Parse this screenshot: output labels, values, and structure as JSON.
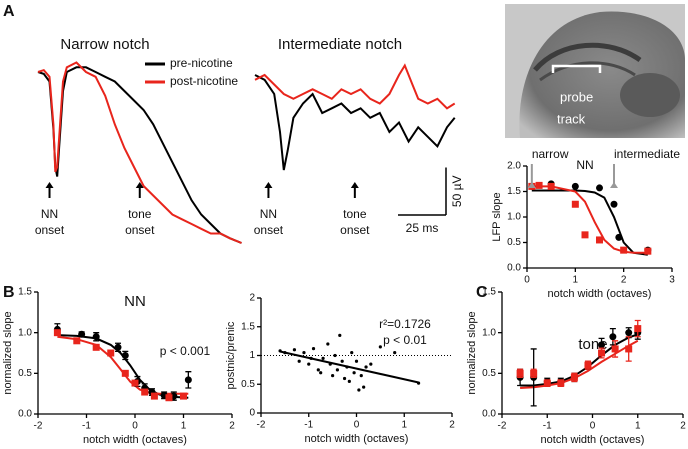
{
  "panels": [
    "A",
    "B",
    "C"
  ],
  "image": {
    "labels": [
      "probe",
      "track"
    ]
  },
  "chart_data": [
    {
      "type": "line",
      "title": "Narrow notch",
      "series": [
        {
          "name": "pre-nicotine",
          "color": "#000000",
          "x": [
            0,
            3,
            6,
            8,
            9,
            10,
            11,
            13,
            15,
            20,
            25,
            30,
            35,
            40,
            45,
            50,
            55,
            60,
            65,
            70,
            75,
            80,
            85,
            90,
            95,
            100,
            106
          ],
          "values": [
            0,
            -2,
            -10,
            -60,
            -100,
            -110,
            -80,
            -20,
            0,
            5,
            5,
            0,
            -5,
            -10,
            -20,
            -30,
            -40,
            -55,
            -75,
            -95,
            -115,
            -135,
            -150,
            -160,
            -170,
            -175,
            -180
          ]
        },
        {
          "name": "post-nicotine",
          "color": "#e8251c",
          "x": [
            0,
            3,
            6,
            8,
            9,
            10,
            11,
            13,
            15,
            20,
            25,
            30,
            35,
            40,
            45,
            50,
            55,
            60,
            65,
            70,
            75,
            80,
            85,
            90,
            95,
            100,
            106
          ],
          "values": [
            0,
            2,
            -5,
            -55,
            -105,
            -100,
            -70,
            -10,
            5,
            10,
            0,
            -5,
            -25,
            -55,
            -80,
            -100,
            -120,
            -130,
            -140,
            -150,
            -155,
            -160,
            -165,
            -170,
            -170,
            -175,
            -180
          ]
        }
      ],
      "annotations": [
        {
          "x": 6,
          "lines": [
            "NN",
            "onset"
          ]
        },
        {
          "x": 53,
          "lines": [
            "tone",
            "onset"
          ]
        }
      ]
    },
    {
      "type": "line",
      "title": "Intermediate notch",
      "series": [
        {
          "color": "#000000",
          "x": [
            0,
            5,
            10,
            13,
            15,
            17,
            20,
            25,
            30,
            35,
            40,
            45,
            50,
            55,
            60,
            65,
            70,
            75,
            80,
            85,
            90,
            95,
            100,
            104
          ],
          "values": [
            0,
            -5,
            -20,
            -60,
            -100,
            -80,
            -45,
            -30,
            -20,
            -40,
            -35,
            -30,
            -40,
            -35,
            -45,
            -40,
            -60,
            -50,
            -70,
            -55,
            -65,
            -75,
            -55,
            -45
          ]
        },
        {
          "color": "#e8251c",
          "x": [
            0,
            5,
            10,
            15,
            20,
            25,
            30,
            35,
            40,
            45,
            50,
            55,
            60,
            65,
            70,
            75,
            78,
            82,
            85,
            90,
            95,
            100,
            104
          ],
          "values": [
            -5,
            0,
            -10,
            -20,
            -25,
            -20,
            -15,
            -20,
            -25,
            -15,
            -20,
            -15,
            -25,
            -30,
            -20,
            0,
            10,
            -10,
            -25,
            -30,
            -25,
            -35,
            -30
          ]
        }
      ],
      "annotations": [
        {
          "x": 7,
          "lines": [
            "NN",
            "onset"
          ]
        },
        {
          "x": 52,
          "lines": [
            "tone",
            "onset"
          ]
        }
      ],
      "scalebar": {
        "x": 25,
        "x_label": "25 ms",
        "y": 50,
        "y_label": "50 µV"
      }
    },
    {
      "type": "scatter",
      "xlabel": "notch width (octaves)",
      "ylabel": "LFP slope",
      "xlim": [
        0,
        3
      ],
      "ylim": [
        0,
        2
      ],
      "xticks": [
        0,
        1,
        2,
        3
      ],
      "yticks": [
        {
          "value": 0,
          "label": "0.0"
        },
        0.5,
        {
          "value": 1,
          "label": "1.0"
        },
        1.5,
        {
          "value": 2,
          "label": "2.0"
        }
      ],
      "series": [
        {
          "color": "#000000",
          "marker": "circle",
          "x": [
            0.1,
            0.5,
            1.0,
            1.5,
            1.8,
            1.9,
            2.5
          ],
          "values": [
            1.6,
            1.65,
            1.6,
            1.57,
            1.25,
            0.6,
            0.35
          ]
        },
        {
          "color": "#e8251c",
          "marker": "square",
          "x": [
            0.1,
            0.25,
            0.5,
            1.0,
            1.2,
            1.5,
            2.0,
            2.5
          ],
          "values": [
            1.6,
            1.62,
            1.6,
            1.25,
            0.65,
            0.55,
            0.35,
            0.33
          ]
        }
      ],
      "fits": [
        {
          "color": "#000000",
          "x": [
            0.1,
            0.5,
            1.0,
            1.2,
            1.4,
            1.6,
            1.8,
            2.0,
            2.2,
            2.5
          ],
          "values": [
            1.52,
            1.52,
            1.52,
            1.51,
            1.48,
            1.38,
            1.0,
            0.5,
            0.3,
            0.26
          ]
        },
        {
          "color": "#e8251c",
          "x": [
            0.1,
            0.5,
            1.0,
            1.2,
            1.4,
            1.6,
            1.8,
            2.0,
            2.2,
            2.5
          ],
          "values": [
            1.6,
            1.6,
            1.5,
            1.3,
            0.9,
            0.55,
            0.38,
            0.32,
            0.3,
            0.3
          ]
        }
      ],
      "annotations": [
        {
          "x": 0.1,
          "text": "narrow",
          "arrow": true
        },
        {
          "x": 1.2,
          "text": "NN"
        },
        {
          "x": 1.8,
          "text": "intermediate",
          "arrow": true
        }
      ]
    },
    {
      "type": "scatter",
      "title": "NN",
      "xlabel": "notch width (octaves)",
      "ylabel": "normalized slope",
      "xlim": [
        -2,
        2
      ],
      "ylim": [
        0,
        1.5
      ],
      "xticks": [
        -2,
        -1,
        0,
        1,
        2
      ],
      "yticks": [
        {
          "value": 0,
          "label": "0.0"
        },
        0.5,
        {
          "value": 1,
          "label": "1.0"
        },
        1.5
      ],
      "series": [
        {
          "color": "#000000",
          "marker": "circle",
          "x": [
            -1.6,
            -1.1,
            -0.8,
            -0.35,
            -0.2,
            0.05,
            0.2,
            0.35,
            0.6,
            0.8,
            1.1
          ],
          "values": [
            1.04,
            0.98,
            0.95,
            0.82,
            0.72,
            0.4,
            0.32,
            0.27,
            0.23,
            0.22,
            0.42
          ],
          "errors": [
            0.07,
            0.03,
            0.05,
            0.05,
            0.05,
            0.06,
            0.05,
            0.04,
            0.04,
            0.05,
            0.1
          ]
        },
        {
          "color": "#e8251c",
          "marker": "square",
          "x": [
            -1.6,
            -1.2,
            -0.8,
            -0.5,
            -0.2,
            0.0,
            0.2,
            0.4,
            0.7,
            1.0
          ],
          "values": [
            1.0,
            0.9,
            0.82,
            0.75,
            0.5,
            0.38,
            0.27,
            0.22,
            0.2,
            0.22
          ]
        }
      ],
      "fits": [
        {
          "color": "#000000",
          "x": [
            -1.6,
            -1.2,
            -0.8,
            -0.5,
            -0.3,
            -0.1,
            0.1,
            0.3,
            0.5,
            0.8,
            1.1
          ],
          "values": [
            0.97,
            0.96,
            0.93,
            0.85,
            0.75,
            0.6,
            0.42,
            0.3,
            0.24,
            0.21,
            0.2
          ]
        },
        {
          "color": "#e8251c",
          "x": [
            -1.6,
            -1.2,
            -0.8,
            -0.5,
            -0.3,
            -0.1,
            0.1,
            0.3,
            0.5,
            0.8,
            1.1
          ],
          "values": [
            0.95,
            0.92,
            0.85,
            0.7,
            0.55,
            0.4,
            0.3,
            0.26,
            0.25,
            0.25,
            0.25
          ]
        }
      ],
      "annotations": [
        "p < 0.001"
      ]
    },
    {
      "type": "scatter",
      "xlabel": "notch width (octaves)",
      "ylabel": "postnic/prenic",
      "xlim": [
        -2,
        2
      ],
      "ylim": [
        0,
        2
      ],
      "xticks": [
        -2,
        -1,
        0,
        1,
        2
      ],
      "yticks": [
        0,
        0.5,
        1,
        1.5,
        2
      ],
      "reference_y": 1,
      "series": [
        {
          "color": "#000000",
          "marker": "dot",
          "x": [
            -1.6,
            -1.5,
            -1.3,
            -1.2,
            -1.1,
            -1.0,
            -0.95,
            -0.9,
            -0.8,
            -0.75,
            -0.7,
            -0.6,
            -0.55,
            -0.5,
            -0.45,
            -0.4,
            -0.35,
            -0.3,
            -0.25,
            -0.2,
            -0.15,
            -0.1,
            -0.05,
            0.0,
            0.05,
            0.1,
            0.15,
            0.2,
            0.3,
            0.5,
            0.8,
            1.3
          ],
          "values": [
            1.08,
            1.05,
            1.1,
            0.9,
            1.05,
            0.85,
            0.95,
            1.12,
            0.75,
            0.7,
            0.95,
            1.2,
            0.85,
            0.65,
            1.0,
            0.75,
            1.35,
            0.9,
            0.6,
            0.8,
            0.55,
            1.05,
            0.7,
            0.9,
            0.4,
            0.65,
            0.45,
            0.8,
            0.85,
            1.15,
            1.05,
            0.52
          ]
        }
      ],
      "fits": [
        {
          "color": "#000000",
          "x": [
            -1.6,
            1.3
          ],
          "values": [
            1.07,
            0.53
          ]
        }
      ],
      "annotations": [
        "r²=0.1726",
        "p < 0.01"
      ]
    },
    {
      "type": "scatter",
      "title": "tone",
      "xlabel": "notch width (octaves)",
      "ylabel": "normalized slope",
      "xlim": [
        -2,
        2
      ],
      "ylim": [
        0,
        1.5
      ],
      "xticks": [
        -2,
        -1,
        0,
        1,
        2
      ],
      "yticks": [
        {
          "value": 0,
          "label": "0.0"
        },
        0.5,
        {
          "value": 1,
          "label": "1.0"
        },
        1.5
      ],
      "series": [
        {
          "color": "#000000",
          "marker": "circle",
          "x": [
            -1.6,
            -1.3,
            -1.0,
            -0.7,
            -0.4,
            -0.1,
            0.2,
            0.45,
            0.8,
            1.0
          ],
          "values": [
            0.45,
            0.45,
            0.4,
            0.4,
            0.45,
            0.6,
            0.85,
            0.95,
            1.0,
            1.0
          ],
          "errors": [
            0.1,
            0.35,
            0.04,
            0.04,
            0.05,
            0.05,
            0.08,
            0.1,
            0.06,
            0.08
          ]
        },
        {
          "color": "#e8251c",
          "marker": "square",
          "x": [
            -1.6,
            -1.3,
            -1.0,
            -0.7,
            -0.4,
            -0.1,
            0.2,
            0.5,
            0.8,
            1.0
          ],
          "values": [
            0.5,
            0.5,
            0.38,
            0.38,
            0.45,
            0.6,
            0.75,
            0.8,
            0.8,
            1.05
          ],
          "errors": [
            0.05,
            0.05,
            0.04,
            0.04,
            0.05,
            0.05,
            0.06,
            0.1,
            0.15,
            0.1
          ]
        }
      ],
      "fits": [
        {
          "color": "#000000",
          "x": [
            -1.6,
            -1.3,
            -1.0,
            -0.7,
            -0.4,
            -0.1,
            0.2,
            0.5,
            0.8,
            1.0
          ],
          "values": [
            0.35,
            0.35,
            0.37,
            0.4,
            0.47,
            0.58,
            0.72,
            0.85,
            0.94,
            0.98
          ]
        },
        {
          "color": "#e8251c",
          "x": [
            -1.6,
            -1.3,
            -1.0,
            -0.7,
            -0.4,
            -0.1,
            0.2,
            0.5,
            0.8,
            1.0
          ],
          "values": [
            0.32,
            0.33,
            0.35,
            0.38,
            0.44,
            0.53,
            0.64,
            0.74,
            0.84,
            0.9
          ]
        }
      ]
    }
  ]
}
